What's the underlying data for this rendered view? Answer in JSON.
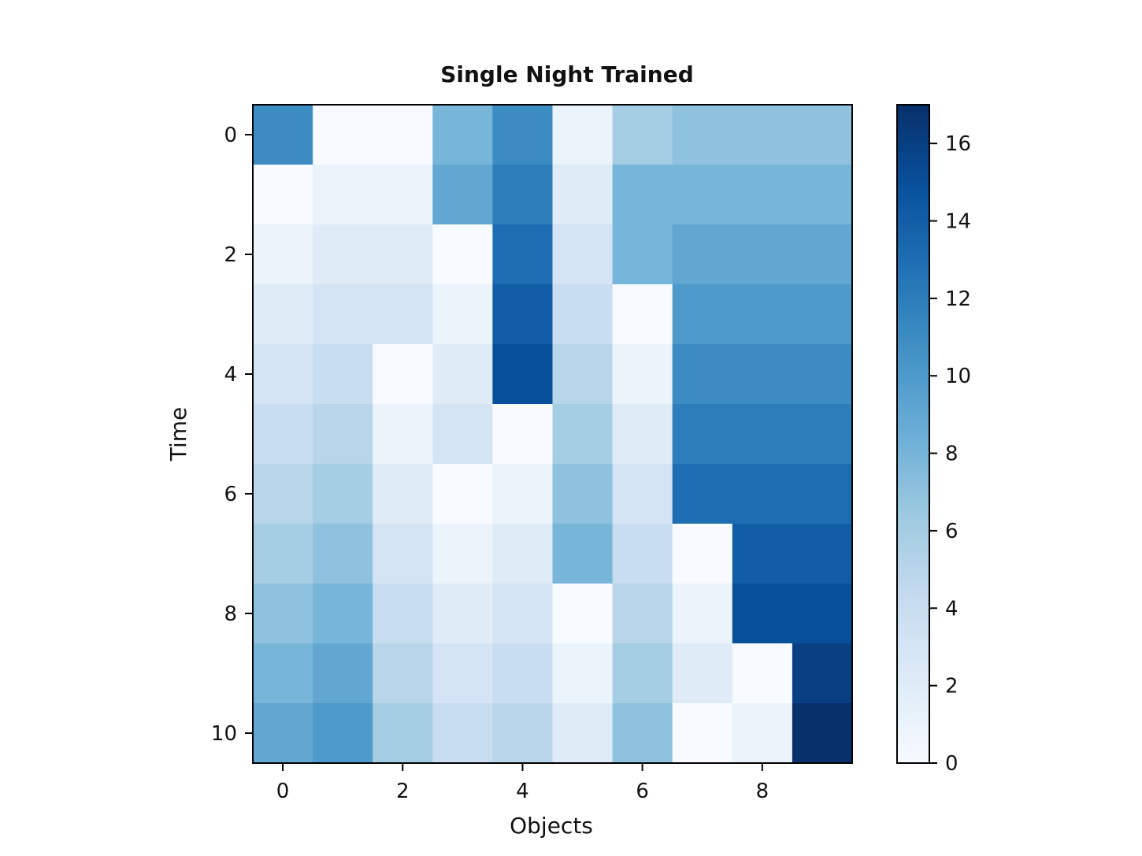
{
  "chart_data": {
    "type": "heatmap",
    "title": "Single Night Trained",
    "xlabel": "Objects",
    "ylabel": "Time",
    "x_categories": [
      0,
      1,
      2,
      3,
      4,
      5,
      6,
      7,
      8,
      9
    ],
    "y_categories": [
      0,
      1,
      2,
      3,
      4,
      5,
      6,
      7,
      8,
      9,
      10
    ],
    "x_ticks": [
      0,
      2,
      4,
      6,
      8
    ],
    "y_ticks": [
      0,
      2,
      4,
      6,
      8,
      10
    ],
    "colormap": "Blues",
    "colormap_stops": [
      "#f7fbff",
      "#deebf7",
      "#c6dbef",
      "#9ecae1",
      "#6baed6",
      "#4292c6",
      "#2171b5",
      "#08519c",
      "#08306b"
    ],
    "vmin": 0,
    "vmax": 17,
    "colorbar_ticks": [
      0,
      2,
      4,
      6,
      8,
      10,
      12,
      14,
      16
    ],
    "grid": false,
    "values": [
      [
        11,
        0,
        0,
        8,
        11,
        1,
        6,
        7,
        7,
        7
      ],
      [
        0,
        1,
        1,
        9,
        12,
        2,
        8,
        8,
        8,
        8
      ],
      [
        1,
        2,
        2,
        0,
        13,
        3,
        8,
        9,
        9,
        9
      ],
      [
        2,
        3,
        3,
        1,
        14,
        4,
        0,
        10,
        10,
        10
      ],
      [
        3,
        4,
        0,
        2,
        15,
        5,
        1,
        11,
        11,
        11
      ],
      [
        4,
        5,
        1,
        3,
        0,
        6,
        2,
        12,
        12,
        12
      ],
      [
        5,
        6,
        2,
        0,
        1,
        7,
        3,
        13,
        13,
        13
      ],
      [
        6,
        7,
        3,
        1,
        2,
        8,
        4,
        0,
        14,
        14
      ],
      [
        7,
        8,
        4,
        2,
        3,
        0,
        5,
        1,
        15,
        15
      ],
      [
        8,
        9,
        5,
        3,
        4,
        1,
        6,
        2,
        0,
        16
      ],
      [
        9,
        10,
        6,
        4,
        5,
        2,
        7,
        0,
        1,
        17
      ]
    ]
  }
}
